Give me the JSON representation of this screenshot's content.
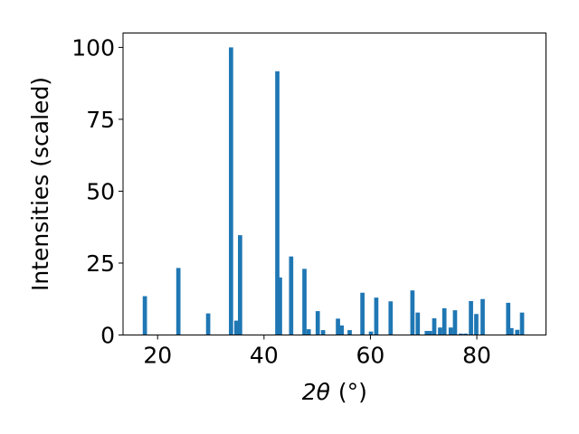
{
  "chart_data": {
    "type": "bar",
    "xlabel_parts": {
      "var": "2θ",
      "unit": "(°)"
    },
    "ylabel": "Intensities (scaled)",
    "xlim": [
      13.5,
      93.0
    ],
    "ylim": [
      0,
      105
    ],
    "xticks": [
      20,
      40,
      60,
      80
    ],
    "yticks": [
      0,
      25,
      50,
      75,
      100
    ],
    "bar_width": 0.8,
    "bar_color": "#1f77b4",
    "grid": false,
    "legend": "none",
    "points": [
      {
        "x": 17.6,
        "y": 13.5
      },
      {
        "x": 23.9,
        "y": 23.3
      },
      {
        "x": 29.5,
        "y": 7.5
      },
      {
        "x": 33.8,
        "y": 100
      },
      {
        "x": 34.8,
        "y": 5.0
      },
      {
        "x": 35.5,
        "y": 34.7
      },
      {
        "x": 42.5,
        "y": 91.7
      },
      {
        "x": 43.0,
        "y": 20.0
      },
      {
        "x": 45.1,
        "y": 27.3
      },
      {
        "x": 47.6,
        "y": 23.0
      },
      {
        "x": 48.4,
        "y": 2.0
      },
      {
        "x": 50.1,
        "y": 8.3
      },
      {
        "x": 51.1,
        "y": 1.7
      },
      {
        "x": 53.9,
        "y": 5.7
      },
      {
        "x": 54.6,
        "y": 3.3
      },
      {
        "x": 56.1,
        "y": 1.7
      },
      {
        "x": 58.5,
        "y": 14.7
      },
      {
        "x": 60.1,
        "y": 1.2
      },
      {
        "x": 61.1,
        "y": 13.0
      },
      {
        "x": 63.8,
        "y": 11.7
      },
      {
        "x": 67.9,
        "y": 15.5
      },
      {
        "x": 68.9,
        "y": 7.8
      },
      {
        "x": 70.6,
        "y": 1.4
      },
      {
        "x": 71.2,
        "y": 1.4
      },
      {
        "x": 72.0,
        "y": 5.8
      },
      {
        "x": 73.1,
        "y": 2.6
      },
      {
        "x": 73.9,
        "y": 9.3
      },
      {
        "x": 75.1,
        "y": 2.6
      },
      {
        "x": 75.9,
        "y": 8.6
      },
      {
        "x": 77.0,
        "y": 0.5
      },
      {
        "x": 77.9,
        "y": 0.5
      },
      {
        "x": 78.9,
        "y": 11.8
      },
      {
        "x": 79.9,
        "y": 7.3
      },
      {
        "x": 81.1,
        "y": 12.5
      },
      {
        "x": 85.9,
        "y": 11.2
      },
      {
        "x": 86.5,
        "y": 2.4
      },
      {
        "x": 87.6,
        "y": 1.8
      },
      {
        "x": 88.5,
        "y": 7.8
      }
    ]
  }
}
